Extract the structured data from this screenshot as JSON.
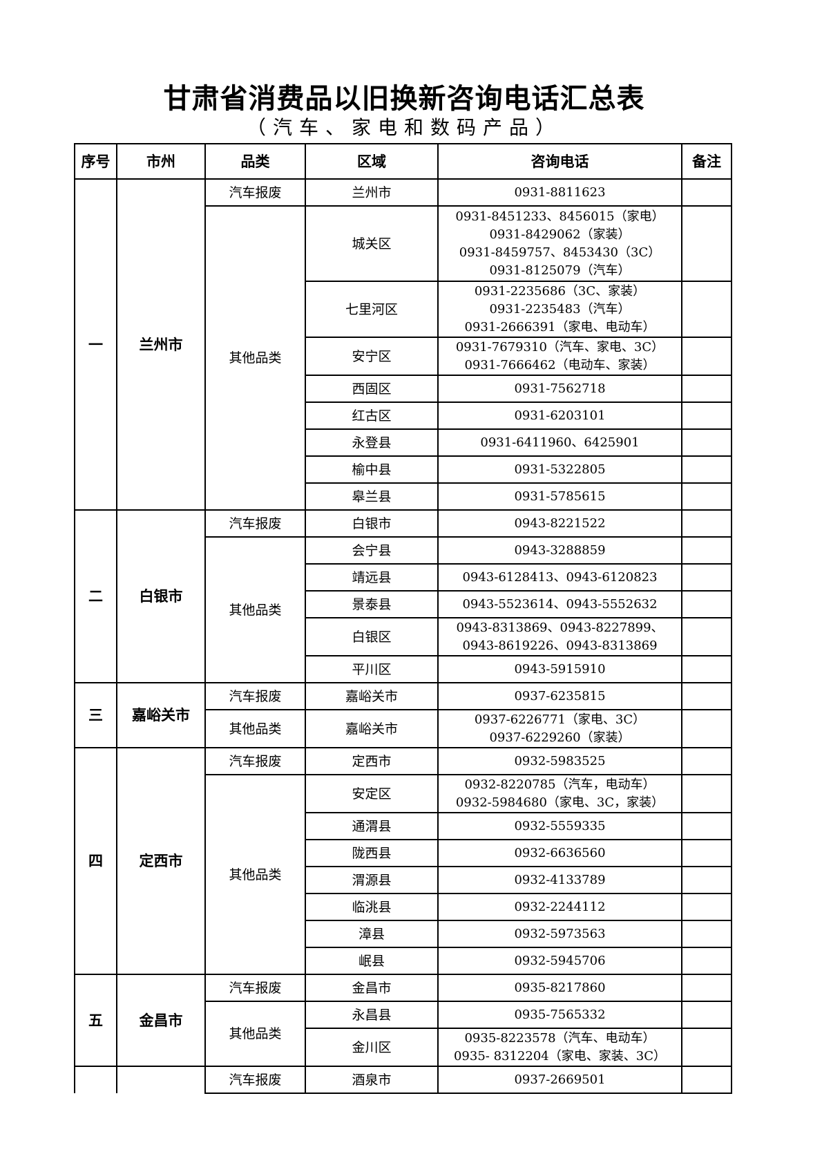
{
  "title": "甘肃省消费品以旧换新咨询电话汇总表",
  "subtitle": "（汽车、家电和数码产品）",
  "headers": [
    "序号",
    "市州",
    "品类",
    "区域",
    "咨询电话",
    "备注"
  ],
  "groups": [
    {
      "index": "一",
      "city": "兰州市",
      "categories": [
        {
          "name": "汽车报废",
          "areas": [
            {
              "area": "兰州市",
              "phones": [
                "0931-8811623"
              ]
            }
          ]
        },
        {
          "name": "其他品类",
          "areas": [
            {
              "area": "城关区",
              "phones": [
                "0931-8451233、8456015（家电）",
                "0931-8429062（家装）",
                "0931-8459757、8453430（3C）",
                "0931-8125079（汽车）"
              ]
            },
            {
              "area": "七里河区",
              "phones": [
                "0931-2235686（3C、家装）",
                "0931-2235483（汽车）",
                "0931-2666391（家电、电动车）"
              ]
            },
            {
              "area": "安宁区",
              "phones": [
                "0931-7679310（汽车、家电、3C）",
                "0931-7666462（电动车、家装）"
              ]
            },
            {
              "area": "西固区",
              "phones": [
                "0931-7562718"
              ]
            },
            {
              "area": "红古区",
              "phones": [
                "0931-6203101"
              ]
            },
            {
              "area": "永登县",
              "phones": [
                "0931-6411960、6425901"
              ]
            },
            {
              "area": "榆中县",
              "phones": [
                "0931-5322805"
              ]
            },
            {
              "area": "皋兰县",
              "phones": [
                "0931-5785615"
              ]
            }
          ]
        }
      ]
    },
    {
      "index": "二",
      "city": "白银市",
      "categories": [
        {
          "name": "汽车报废",
          "areas": [
            {
              "area": "白银市",
              "phones": [
                "0943-8221522"
              ]
            }
          ]
        },
        {
          "name": "其他品类",
          "areas": [
            {
              "area": "会宁县",
              "phones": [
                "0943-3288859"
              ]
            },
            {
              "area": "靖远县",
              "phones": [
                "0943-6128413、0943-6120823"
              ]
            },
            {
              "area": "景泰县",
              "phones": [
                "0943-5523614、0943-5552632"
              ]
            },
            {
              "area": "白银区",
              "phones": [
                "0943-8313869、0943-8227899、",
                "0943-8619226、0943-8313869"
              ]
            },
            {
              "area": "平川区",
              "phones": [
                "0943-5915910"
              ]
            }
          ]
        }
      ]
    },
    {
      "index": "三",
      "city": "嘉峪关市",
      "categories": [
        {
          "name": "汽车报废",
          "areas": [
            {
              "area": "嘉峪关市",
              "phones": [
                "0937-6235815"
              ]
            }
          ]
        },
        {
          "name": "其他品类",
          "areas": [
            {
              "area": "嘉峪关市",
              "phones": [
                "0937-6226771（家电、3C）",
                "0937-6229260（家装）"
              ]
            }
          ]
        }
      ]
    },
    {
      "index": "四",
      "city": "定西市",
      "categories": [
        {
          "name": "汽车报废",
          "areas": [
            {
              "area": "定西市",
              "phones": [
                "0932-5983525"
              ]
            }
          ]
        },
        {
          "name": "其他品类",
          "areas": [
            {
              "area": "安定区",
              "phones": [
                "0932-8220785（汽车，电动车）",
                "0932-5984680（家电、3C，家装）"
              ]
            },
            {
              "area": "通渭县",
              "phones": [
                "0932-5559335"
              ]
            },
            {
              "area": "陇西县",
              "phones": [
                "0932-6636560"
              ]
            },
            {
              "area": "渭源县",
              "phones": [
                "0932-4133789"
              ]
            },
            {
              "area": "临洮县",
              "phones": [
                "0932-2244112"
              ]
            },
            {
              "area": "漳县",
              "phones": [
                "0932-5973563"
              ]
            },
            {
              "area": "岷县",
              "phones": [
                "0932-5945706"
              ]
            }
          ]
        }
      ]
    },
    {
      "index": "五",
      "city": "金昌市",
      "categories": [
        {
          "name": "汽车报废",
          "areas": [
            {
              "area": "金昌市",
              "phones": [
                "0935-8217860"
              ]
            }
          ]
        },
        {
          "name": "其他品类",
          "areas": [
            {
              "area": "永昌县",
              "phones": [
                "0935-7565332"
              ]
            },
            {
              "area": "金川区",
              "phones": [
                "0935-8223578（汽车、电动车）",
                "0935- 8312204（家电、家装、3C）"
              ]
            }
          ]
        }
      ]
    },
    {
      "index": "",
      "city": "",
      "continued": true,
      "categories": [
        {
          "name": "汽车报废",
          "areas": [
            {
              "area": "酒泉市",
              "phones": [
                "0937-2669501"
              ]
            }
          ]
        }
      ]
    }
  ]
}
